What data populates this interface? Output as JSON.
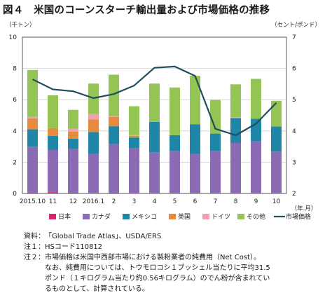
{
  "title": "図４　米国のコーンスターチ輸出量および市場価格の推移",
  "colors": {
    "japan": "#d6246e",
    "canada": "#8a6bb4",
    "mexico": "#1f86a8",
    "uk": "#e88a3c",
    "germany": "#f1a0b0",
    "other": "#94c453",
    "price": "#1f4e5f",
    "grid": "#d0d0d0",
    "axis": "#333333"
  },
  "chart_data": {
    "type": "bar",
    "stacked": true,
    "categories": [
      "2015.10",
      "11",
      "12",
      "2016.1",
      "2",
      "3",
      "4",
      "5",
      "6",
      "7",
      "8",
      "9",
      "10"
    ],
    "x_unit": "（年.月）",
    "y_left": {
      "label": "（千トン）",
      "ticks": [
        0,
        2,
        4,
        6,
        8,
        10
      ],
      "ylim": [
        0,
        10
      ]
    },
    "y_right": {
      "label": "（セント/ポンド）",
      "ticks": [
        2,
        3,
        4,
        5,
        6,
        7
      ],
      "ylim": [
        2,
        7
      ]
    },
    "series": [
      {
        "name": "日本",
        "key": "japan",
        "values": [
          0.05,
          0.08,
          0.05,
          0.03,
          0.05,
          0.03,
          0.03,
          0.03,
          0.03,
          0.03,
          0.03,
          0.03,
          0.03
        ]
      },
      {
        "name": "カナダ",
        "key": "canada",
        "values": [
          2.95,
          2.7,
          2.8,
          2.5,
          3.1,
          2.85,
          2.6,
          2.7,
          2.5,
          2.7,
          3.2,
          3.3,
          2.65
        ]
      },
      {
        "name": "メキシコ",
        "key": "mexico",
        "values": [
          1.1,
          0.9,
          0.65,
          1.4,
          1.15,
          0.7,
          1.95,
          1.0,
          1.9,
          1.1,
          1.6,
          1.45,
          1.6
        ]
      },
      {
        "name": "英国",
        "key": "uk",
        "values": [
          0.7,
          0.5,
          0.45,
          0.8,
          0.6,
          0.1,
          0.0,
          0.0,
          0.0,
          0.0,
          0.0,
          0.0,
          0.0
        ]
      },
      {
        "name": "ドイツ",
        "key": "germany",
        "values": [
          0.1,
          0.0,
          0.2,
          0.35,
          0.05,
          0.05,
          0.0,
          0.0,
          0.0,
          0.0,
          0.05,
          0.0,
          0.0
        ]
      },
      {
        "name": "その他",
        "key": "other",
        "values": [
          3.0,
          2.1,
          1.2,
          1.95,
          2.65,
          1.85,
          2.45,
          3.05,
          3.1,
          2.15,
          2.1,
          2.55,
          1.65
        ]
      }
    ],
    "line": {
      "name": "市場価格",
      "key": "price",
      "axis": "right",
      "values": [
        5.65,
        5.33,
        5.27,
        5.05,
        5.18,
        5.45,
        6.02,
        6.06,
        5.76,
        4.07,
        3.86,
        4.23,
        4.9
      ]
    }
  },
  "notes": [
    {
      "label": "資料：",
      "text": "「Global Trade Atlas」、USDA/ERS"
    },
    {
      "label": "注１：",
      "text": "HSコード110812"
    },
    {
      "label": "注２：",
      "text": "市場価格は米国中西部市場における製粉業者の純費用（Net Cost）。\nなお、純費用については、トウモロコシ１ブッシェル当たりに平均31.5\nポンド（１キログラム当たり約0.56キログラム）のでん粉が含まれてい\nるものとして、計算されている。"
    }
  ]
}
